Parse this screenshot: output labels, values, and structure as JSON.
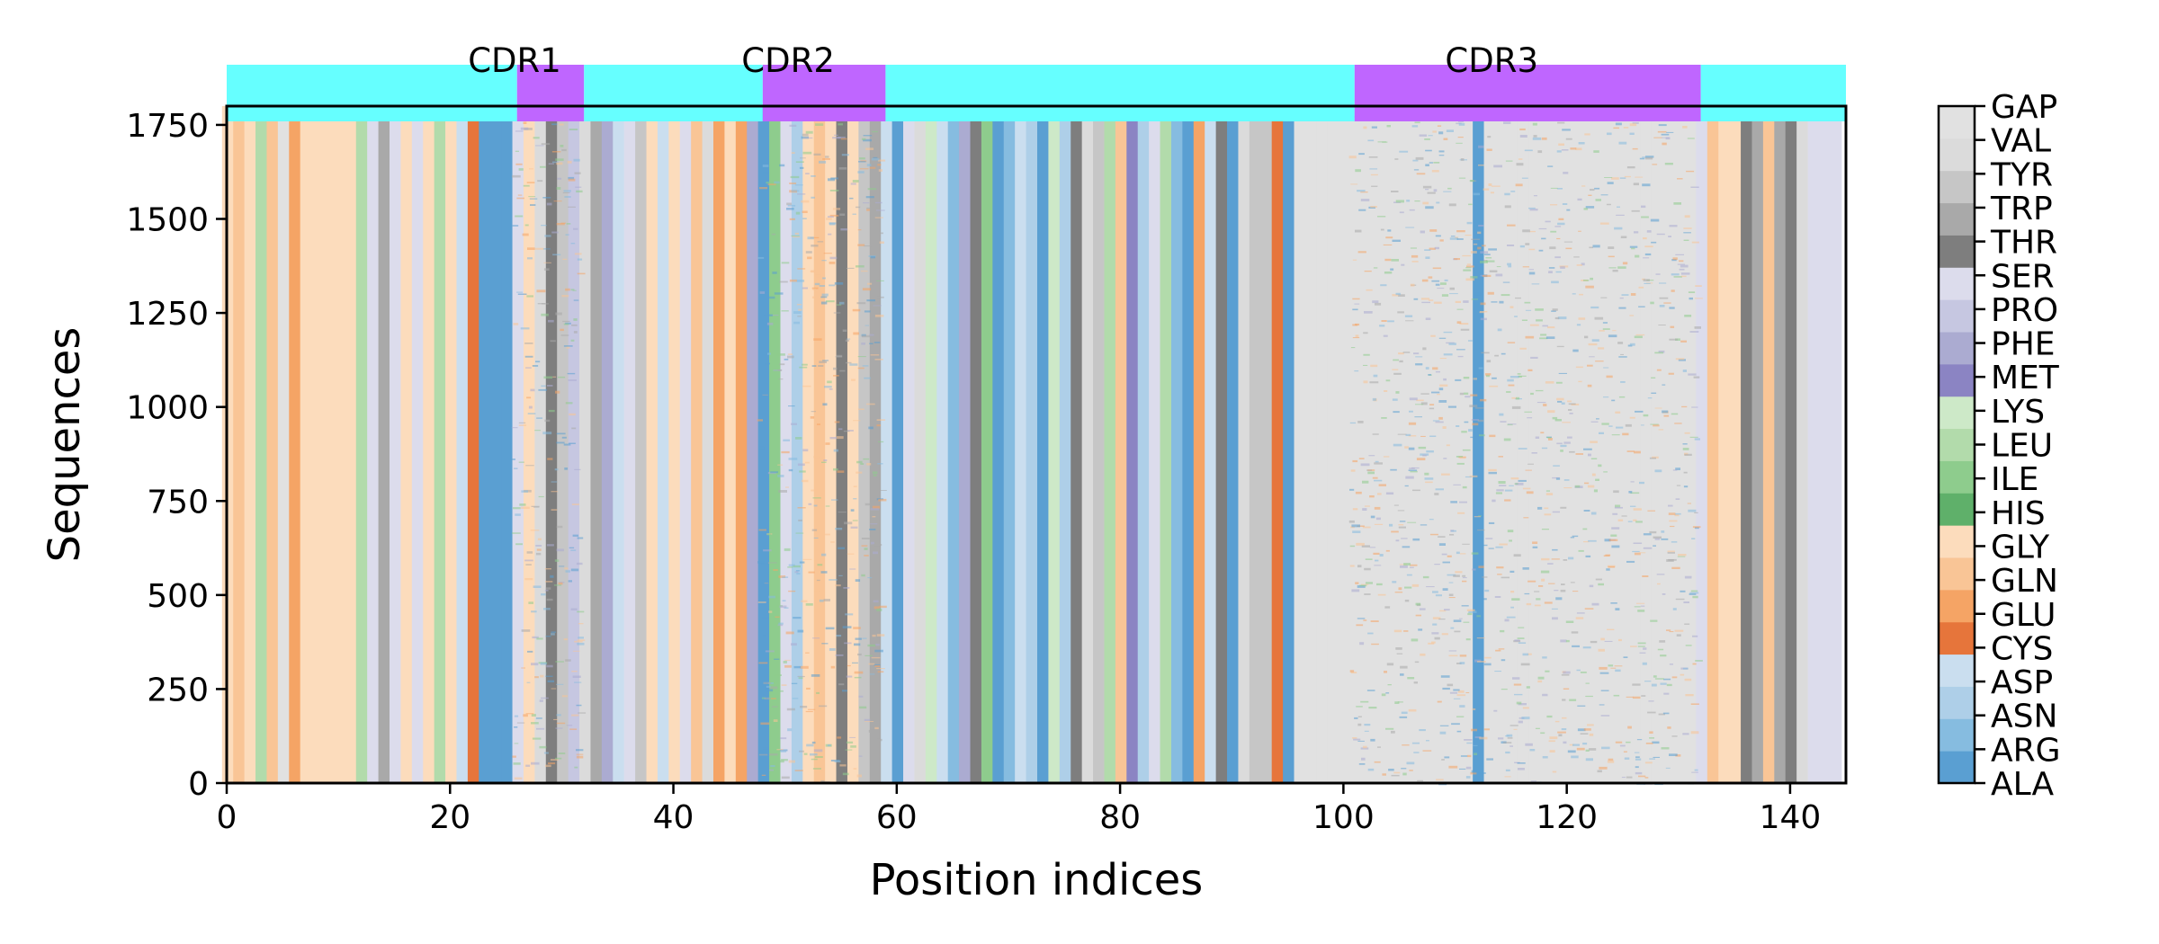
{
  "chart_data": {
    "type": "heatmap",
    "title": "",
    "xlabel": "Position indices",
    "ylabel": "Sequences",
    "xlim": [
      0,
      145
    ],
    "ylim": [
      0,
      1800
    ],
    "x_ticks": [
      0,
      20,
      40,
      60,
      80,
      100,
      120,
      140
    ],
    "y_ticks": [
      0,
      250,
      500,
      750,
      1000,
      1250,
      1500,
      1750
    ],
    "x_tick_labels": [
      "0",
      "20",
      "40",
      "60",
      "80",
      "100",
      "120",
      "140"
    ],
    "y_tick_labels": [
      "0",
      "250",
      "500",
      "750",
      "1000",
      "1250",
      "1500",
      "1750"
    ],
    "num_positions": 145,
    "num_sequences": 1800,
    "regions": [
      {
        "label": "",
        "start": 0,
        "end": 26,
        "type": "framework",
        "color": "#66ffff"
      },
      {
        "label": "CDR1",
        "start": 26,
        "end": 32,
        "type": "cdr",
        "color": "#bf66ff"
      },
      {
        "label": "",
        "start": 32,
        "end": 48,
        "type": "framework",
        "color": "#66ffff"
      },
      {
        "label": "CDR2",
        "start": 48,
        "end": 59,
        "type": "cdr",
        "color": "#bf66ff"
      },
      {
        "label": "",
        "start": 59,
        "end": 101,
        "type": "framework",
        "color": "#66ffff"
      },
      {
        "label": "CDR3",
        "start": 101,
        "end": 132,
        "type": "cdr",
        "color": "#bf66ff"
      },
      {
        "label": "",
        "start": 132,
        "end": 145,
        "type": "framework",
        "color": "#66ffff"
      }
    ],
    "colorbar": {
      "categories": [
        "ALA",
        "ARG",
        "ASN",
        "ASP",
        "CYS",
        "GLU",
        "GLN",
        "GLY",
        "HIS",
        "ILE",
        "LEU",
        "LYS",
        "MET",
        "PHE",
        "PRO",
        "SER",
        "THR",
        "TRP",
        "TYR",
        "VAL",
        "GAP"
      ],
      "colors": [
        "#5a9fd2",
        "#86bce0",
        "#aecfe8",
        "#cadeef",
        "#e6753b",
        "#f5a465",
        "#f9c596",
        "#fcdcbc",
        "#5fb06a",
        "#8ecc8d",
        "#b2dbab",
        "#cde9c8",
        "#8b84c3",
        "#ababd1",
        "#c6c7e1",
        "#dcdcec",
        "#7e7e7e",
        "#a9a9a9",
        "#c6c6c6",
        "#dbdbdb",
        "#e1e1e1"
      ]
    },
    "dominant_residue_by_position": [
      "GLY",
      "GLN",
      "GLY",
      "LEU",
      "GLN",
      "GAP",
      "GLU",
      "GLY",
      "GLY",
      "GLY",
      "GLY",
      "GLY",
      "LEU",
      "SER",
      "TRP",
      "SER",
      "GLY",
      "SER",
      "GLY",
      "LEU",
      "GLY",
      "ASP",
      "CYS",
      "ALA",
      "ALA",
      "ALA",
      "SER",
      "GLY",
      "VAL",
      "THR",
      "TYR",
      "PRO",
      "VAL",
      "TRP",
      "PHE",
      "ASP",
      "SER",
      "TYR",
      "GLY",
      "ASP",
      "GLY",
      "SER",
      "GLN",
      "VAL",
      "GLU",
      "GLY",
      "GLU",
      "PHE",
      "ALA",
      "ILE",
      "SER",
      "ASN",
      "GLY",
      "GLN",
      "GLY",
      "THR",
      "GLY",
      "TYR",
      "TRP",
      "ASP",
      "ALA",
      "SER",
      "VAL",
      "LYS",
      "ASP",
      "ARG",
      "PHE",
      "THR",
      "ILE",
      "ALA",
      "ARG",
      "ASP",
      "ASN",
      "ALA",
      "LYS",
      "ASN",
      "THR",
      "VAL",
      "TYR",
      "LEU",
      "GLN",
      "MET",
      "ASN",
      "SER",
      "LEU",
      "ARG",
      "ALA",
      "GLU",
      "ASP",
      "THR",
      "ALA",
      "VAL",
      "TYR",
      "TYR",
      "CYS",
      "ALA",
      "GAP",
      "GAP",
      "GAP",
      "GAP",
      "GAP",
      "GAP",
      "GAP",
      "GAP",
      "GAP",
      "GAP",
      "GAP",
      "GAP",
      "GAP",
      "GAP",
      "GAP",
      "GAP",
      "ALA",
      "GAP",
      "GAP",
      "GAP",
      "GAP",
      "GAP",
      "GAP",
      "GAP",
      "GAP",
      "GAP",
      "GAP",
      "GAP",
      "GAP",
      "GAP",
      "GAP",
      "GAP",
      "GAP",
      "GAP",
      "GAP",
      "GAP",
      "SER",
      "GLN",
      "GLY",
      "GLY",
      "THR",
      "TRP",
      "GLN",
      "TRP",
      "THR",
      "VAL",
      "SER",
      "SER",
      "SER"
    ]
  }
}
